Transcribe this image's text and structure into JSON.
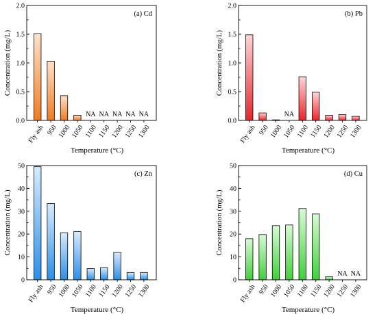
{
  "chart_data": [
    {
      "type": "bar",
      "panel_label": "(a) Cd",
      "xlabel": "Temperature (°C)",
      "ylabel": "Concentration (mg/L)",
      "categories": [
        "Fly ash",
        "950",
        "1000",
        "1050",
        "1100",
        "1150",
        "1200",
        "1250",
        "1300"
      ],
      "values": [
        1.51,
        1.03,
        0.43,
        0.09,
        null,
        null,
        null,
        null,
        null
      ],
      "annotations": [
        "",
        "",
        "",
        "",
        "NA",
        "NA",
        "NA",
        "NA",
        "NA"
      ],
      "ylim": [
        0,
        2.0
      ],
      "yticks": [
        "0.0",
        "0.5",
        "1.0",
        "1.5",
        "2.0"
      ],
      "color_top": "#ffe3cc",
      "color_bottom": "#f07a20"
    },
    {
      "type": "bar",
      "panel_label": "(b) Pb",
      "xlabel": "Temperature (°C)",
      "ylabel": "Concentration (mg/L)",
      "categories": [
        "Fly ash",
        "950",
        "1000",
        "1050",
        "1100",
        "1150",
        "1200",
        "1250",
        "1300"
      ],
      "values": [
        1.49,
        0.13,
        0.01,
        null,
        0.76,
        0.49,
        0.09,
        0.1,
        0.07
      ],
      "annotations": [
        "",
        "",
        "",
        "NA",
        "",
        "",
        "",
        "",
        ""
      ],
      "ylim": [
        0,
        2.0
      ],
      "yticks": [
        "0.0",
        "0.5",
        "1.0",
        "1.5",
        "2.0"
      ],
      "color_top": "#ffd6d6",
      "color_bottom": "#e8242b"
    },
    {
      "type": "bar",
      "panel_label": "(c) Zn",
      "xlabel": "Temperature (°C)",
      "ylabel": "Concentration (mg/L)",
      "categories": [
        "Fly ash",
        "950",
        "1000",
        "1050",
        "1100",
        "1150",
        "1200",
        "1250",
        "1300"
      ],
      "values": [
        49.5,
        33.4,
        20.6,
        21.1,
        4.9,
        5.3,
        12.0,
        3.2,
        3.2
      ],
      "annotations": [
        "",
        "",
        "",
        "",
        "",
        "",
        "",
        "",
        ""
      ],
      "ylim": [
        0,
        50
      ],
      "yticks": [
        "0",
        "10",
        "20",
        "30",
        "40",
        "50"
      ],
      "color_top": "#d8ecff",
      "color_bottom": "#2b8ee6"
    },
    {
      "type": "bar",
      "panel_label": "(d) Cu",
      "xlabel": "Temperature (°C)",
      "ylabel": "Concentration (mg/L)",
      "categories": [
        "Fly ash",
        "950",
        "1000",
        "1050",
        "1100",
        "1150",
        "1200",
        "1250",
        "1300"
      ],
      "values": [
        18.0,
        19.8,
        23.7,
        24.0,
        31.2,
        28.8,
        1.3,
        null,
        null
      ],
      "annotations": [
        "",
        "",
        "",
        "",
        "",
        "",
        "",
        "NA",
        "NA"
      ],
      "ylim": [
        0,
        50
      ],
      "yticks": [
        "0",
        "10",
        "20",
        "30",
        "40",
        "50"
      ],
      "color_top": "#d9fbd6",
      "color_bottom": "#3fd03a"
    }
  ]
}
